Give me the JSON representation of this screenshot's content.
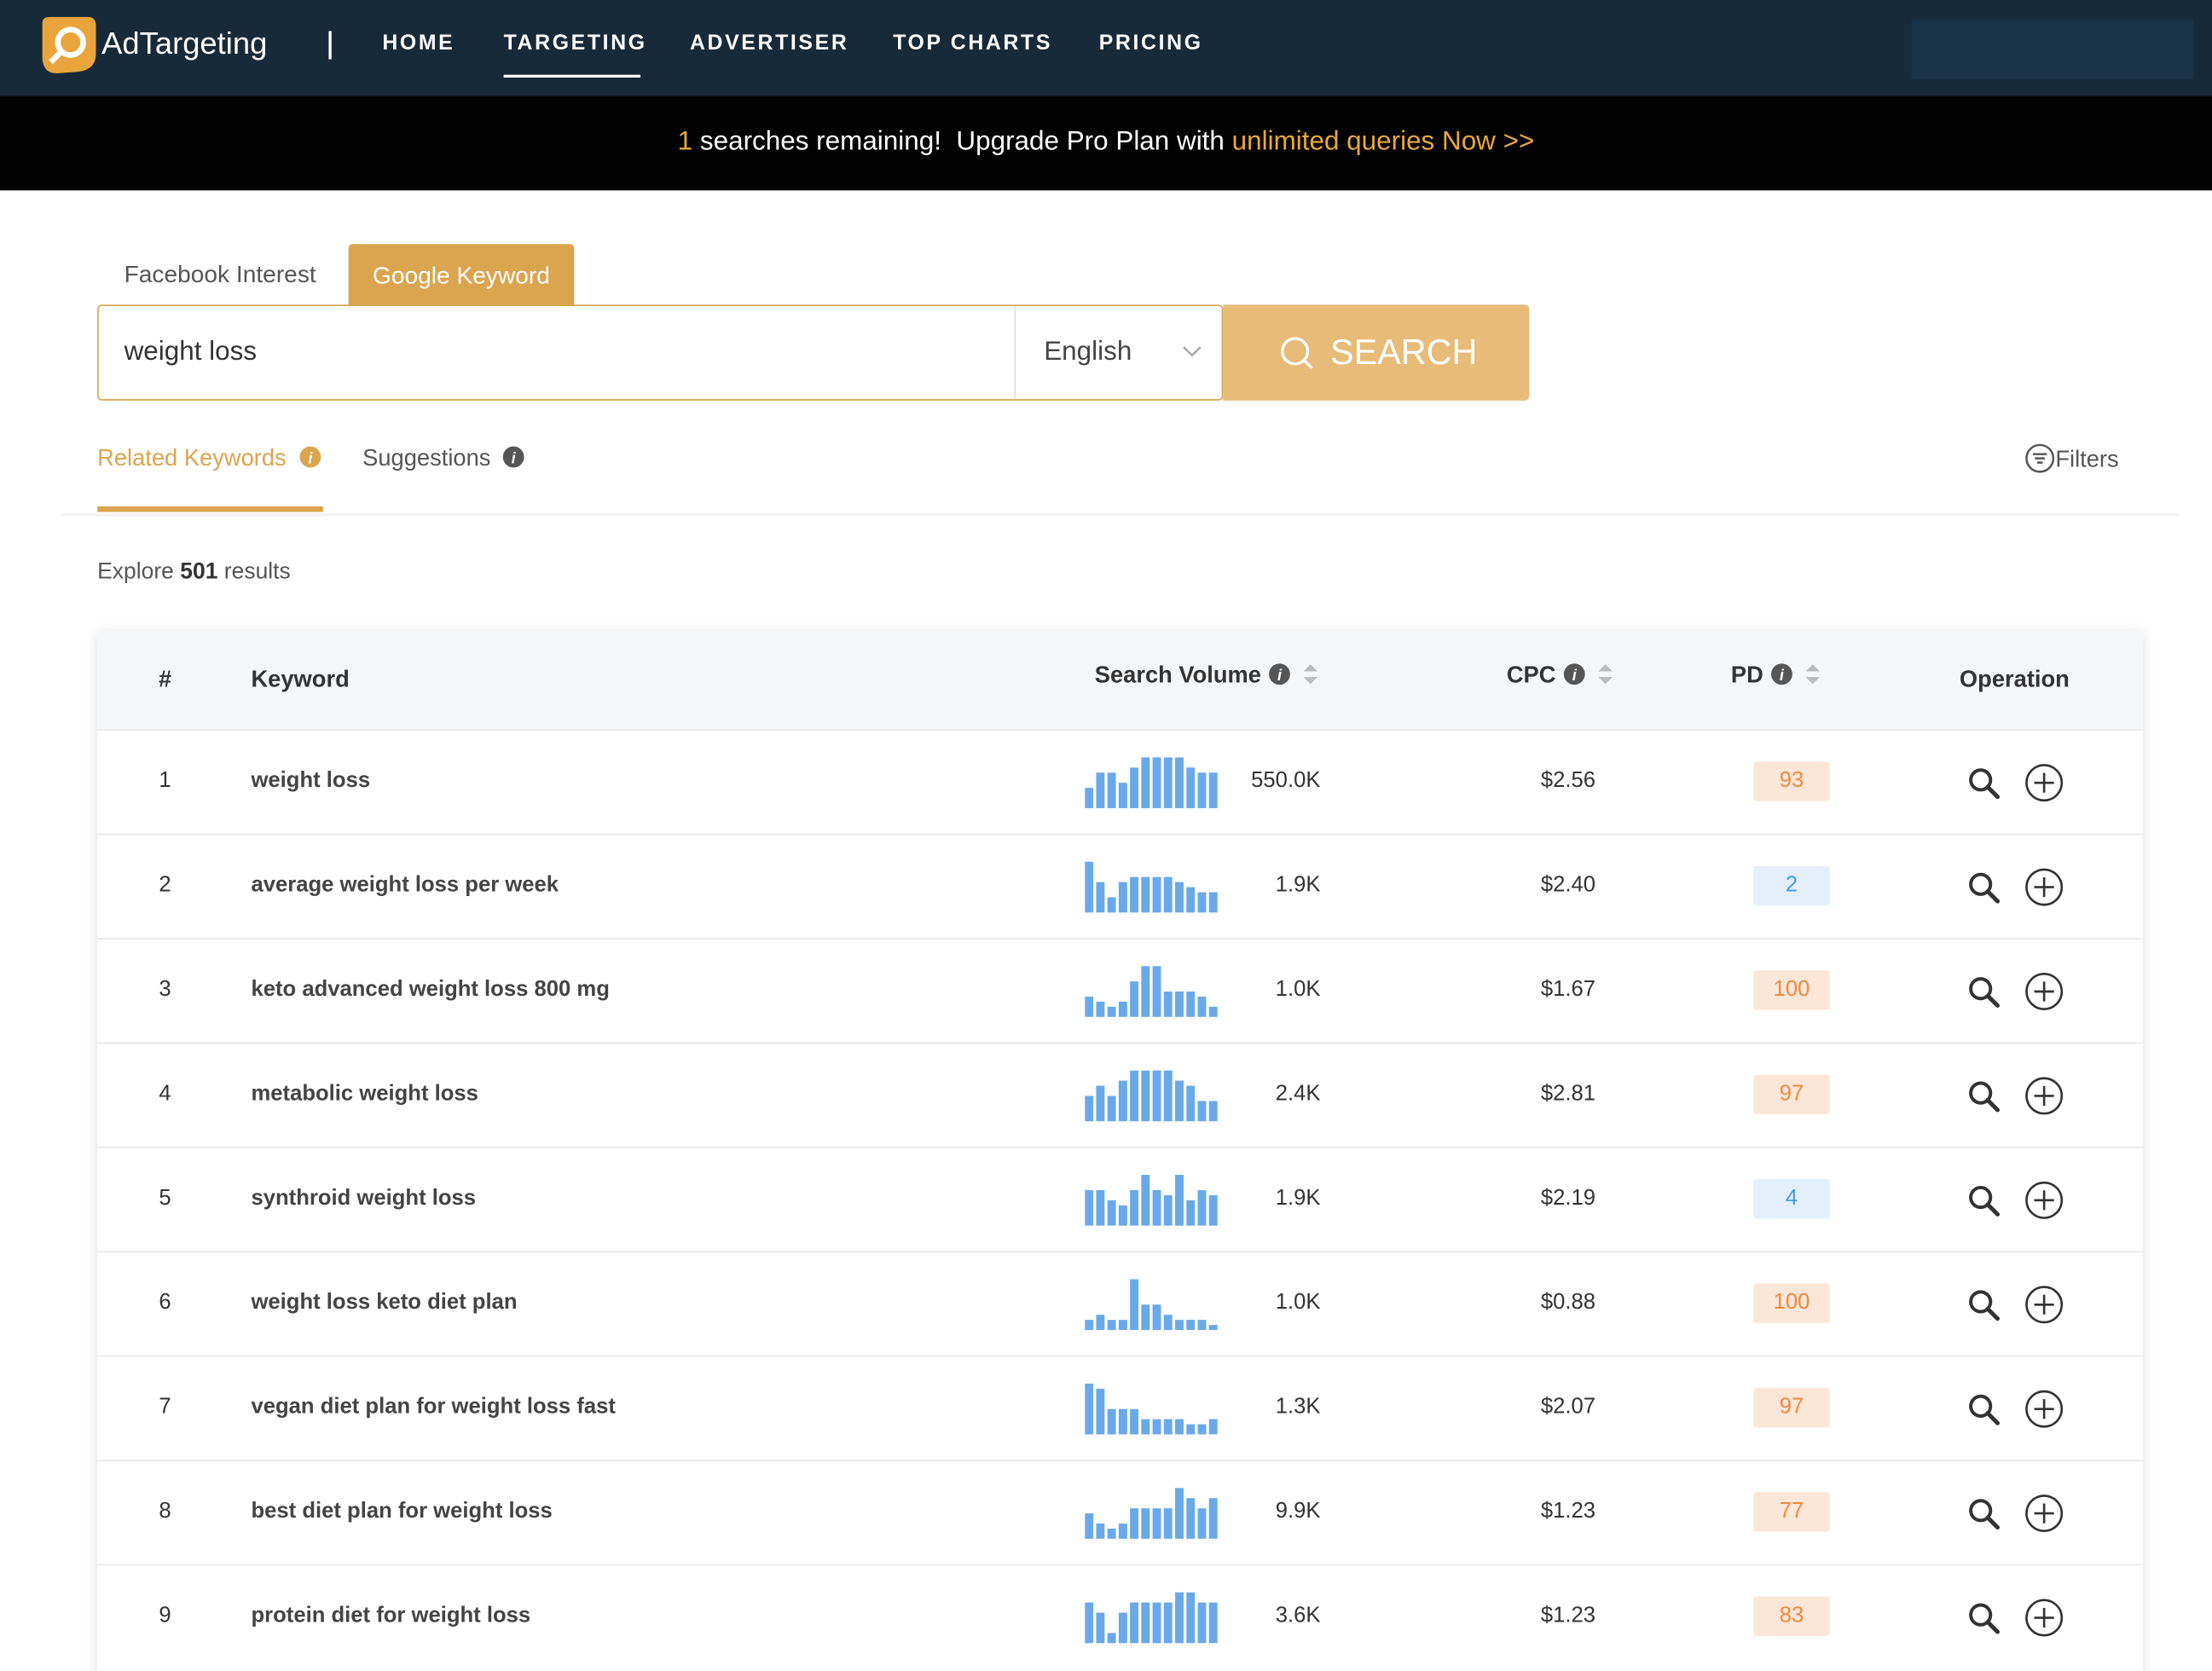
{
  "nav": {
    "brand": "AdTargeting",
    "items": [
      "HOME",
      "TARGETING",
      "ADVERTISER",
      "TOP CHARTS",
      "PRICING"
    ],
    "active": 1
  },
  "banner": {
    "count": "1",
    "text": " searches remaining!  Upgrade Pro Plan with ",
    "link": "unlimited queries Now >>"
  },
  "tabs": {
    "items": [
      "Facebook Interest",
      "Google Keyword"
    ],
    "active": 1
  },
  "search": {
    "query": "weight loss",
    "language": "English",
    "button": "SEARCH"
  },
  "subtabs": {
    "items": [
      "Related Keywords",
      "Suggestions"
    ],
    "active": 0,
    "filters": "Filters"
  },
  "summary": {
    "prefix": "Explore",
    "count": "501",
    "suffix": "results"
  },
  "table": {
    "headers": [
      "#",
      "Keyword",
      "Search Volume",
      "CPC",
      "PD",
      "Operation"
    ],
    "rows": [
      {
        "index": 1,
        "keyword": "weight loss",
        "trend": [
          4,
          7,
          7,
          5,
          8,
          10,
          10,
          10,
          10,
          8,
          7,
          7
        ],
        "volume": "550.0K",
        "cpc": "$2.56",
        "pd": 93
      },
      {
        "index": 2,
        "keyword": "average weight loss per week",
        "trend": [
          10,
          6,
          3,
          6,
          7,
          7,
          7,
          7,
          6,
          5,
          4,
          4
        ],
        "volume": "1.9K",
        "cpc": "$2.40",
        "pd": 2
      },
      {
        "index": 3,
        "keyword": "keto advanced weight loss 800 mg",
        "trend": [
          4,
          3,
          2,
          3,
          7,
          10,
          10,
          5,
          5,
          5,
          4,
          2
        ],
        "volume": "1.0K",
        "cpc": "$1.67",
        "pd": 100
      },
      {
        "index": 4,
        "keyword": "metabolic weight loss",
        "trend": [
          5,
          7,
          5,
          8,
          10,
          10,
          10,
          10,
          8,
          7,
          4,
          4
        ],
        "volume": "2.4K",
        "cpc": "$2.81",
        "pd": 97
      },
      {
        "index": 5,
        "keyword": "synthroid weight loss",
        "trend": [
          7,
          7,
          5,
          4,
          7,
          10,
          7,
          6,
          10,
          5,
          7,
          6
        ],
        "volume": "1.9K",
        "cpc": "$2.19",
        "pd": 4
      },
      {
        "index": 6,
        "keyword": "weight loss keto diet plan",
        "trend": [
          2,
          3,
          2,
          2,
          10,
          5,
          5,
          3,
          2,
          2,
          2,
          1
        ],
        "volume": "1.0K",
        "cpc": "$0.88",
        "pd": 100
      },
      {
        "index": 7,
        "keyword": "vegan diet plan for weight loss fast",
        "trend": [
          10,
          9,
          5,
          5,
          5,
          3,
          3,
          3,
          3,
          2,
          2,
          3
        ],
        "volume": "1.3K",
        "cpc": "$2.07",
        "pd": 97
      },
      {
        "index": 8,
        "keyword": "best diet plan for weight loss",
        "trend": [
          5,
          3,
          2,
          3,
          6,
          6,
          6,
          6,
          10,
          8,
          6,
          8
        ],
        "volume": "9.9K",
        "cpc": "$1.23",
        "pd": 77
      },
      {
        "index": 9,
        "keyword": "protein diet for weight loss",
        "trend": [
          8,
          6,
          2,
          6,
          8,
          8,
          8,
          8,
          10,
          10,
          8,
          8
        ],
        "volume": "3.6K",
        "cpc": "$1.23",
        "pd": 83
      }
    ]
  }
}
